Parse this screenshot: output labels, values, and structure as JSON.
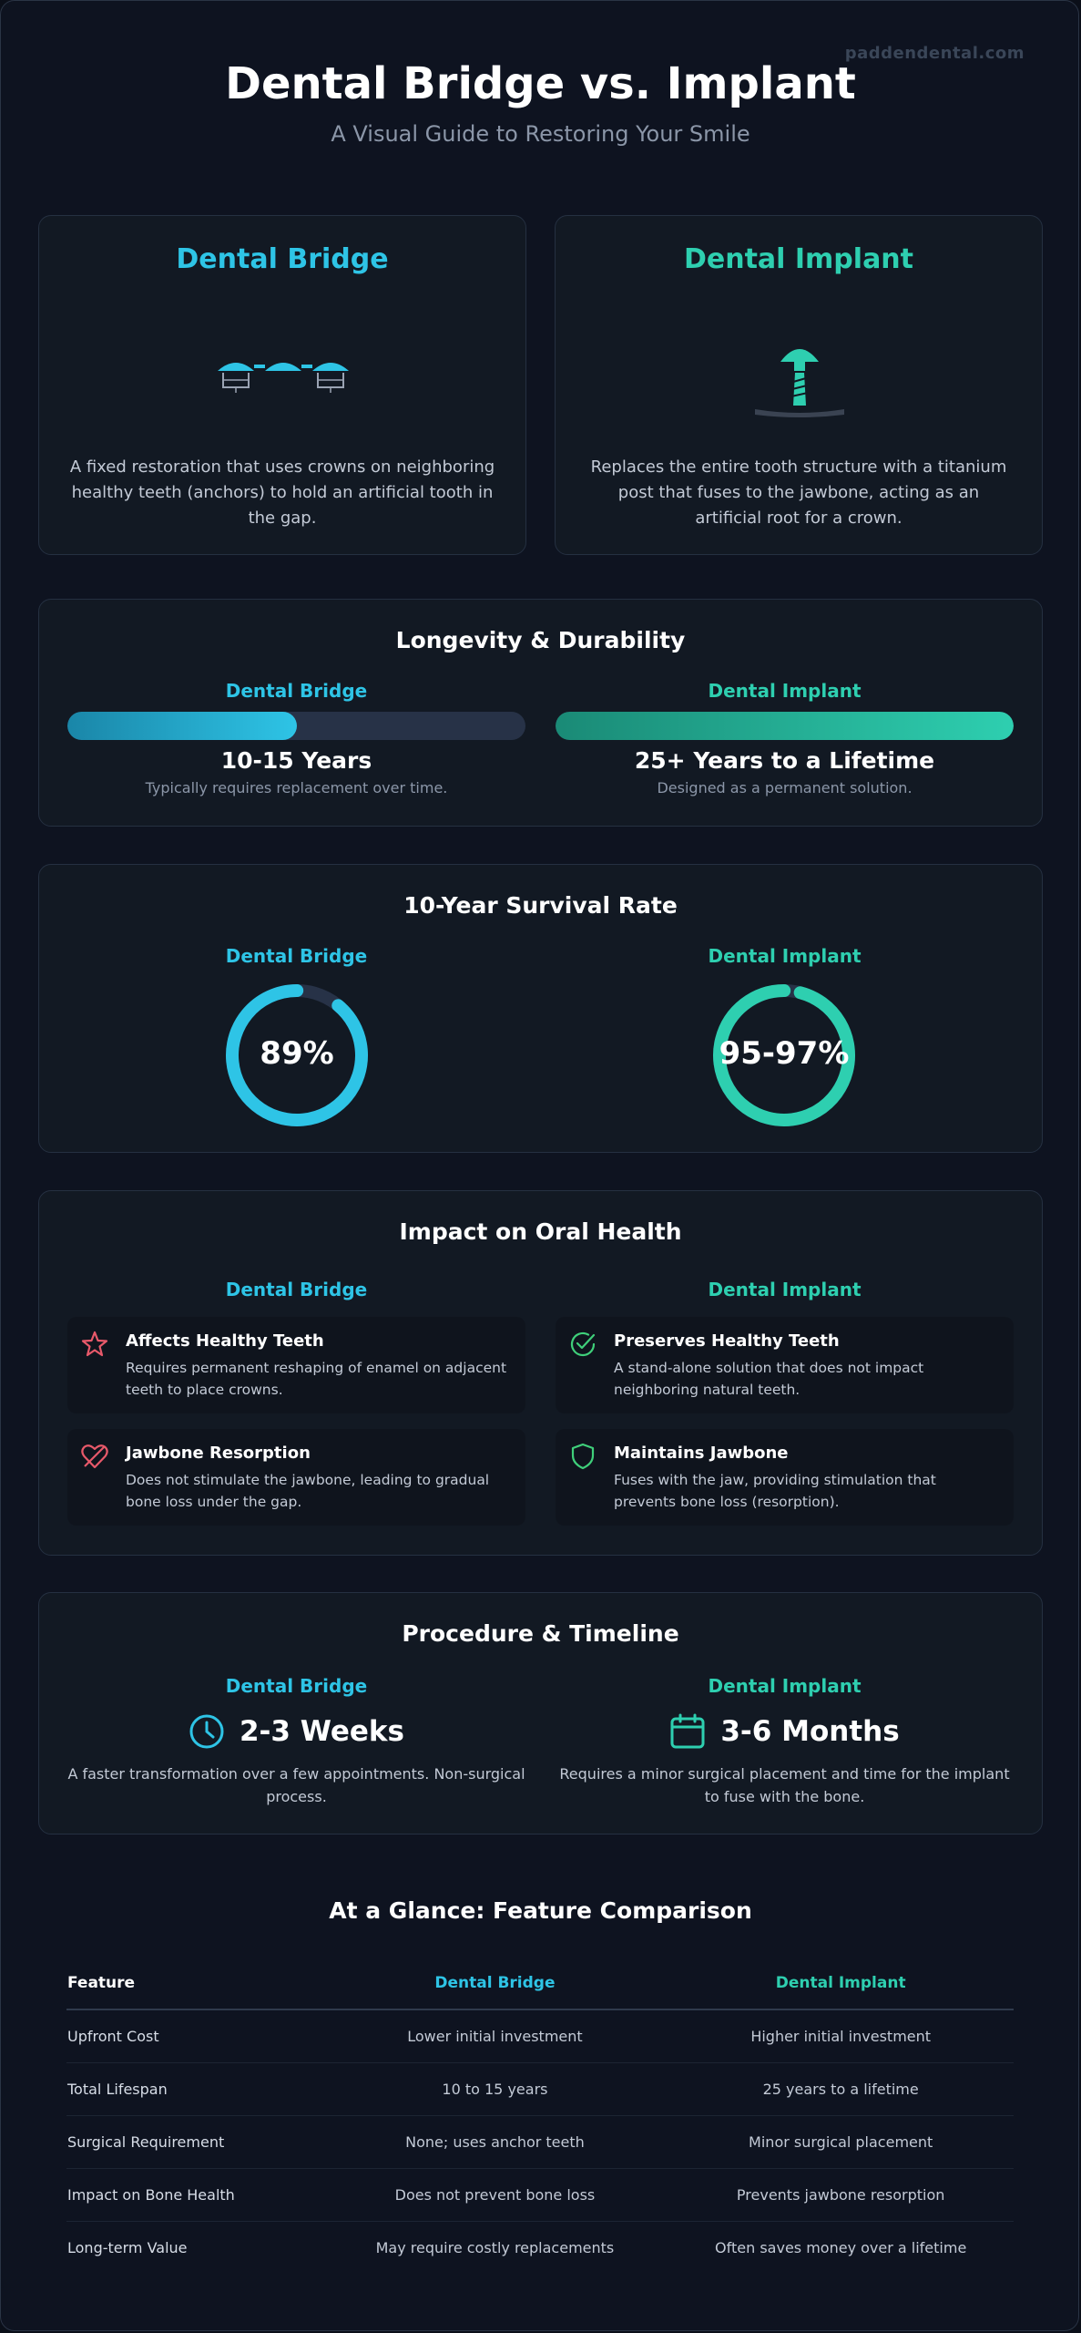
{
  "watermark": "paddendental.com",
  "title": "Dental Bridge vs. Implant",
  "subtitle": "A Visual Guide to Restoring Your Smile",
  "colors": {
    "bridge": "#2ec4e6",
    "implant": "#2ecfb0",
    "negative": "#e8596a",
    "positive": "#3fcf7a",
    "track": "#273247"
  },
  "intro": {
    "bridge": {
      "title": "Dental Bridge",
      "icon": "dental-bridge-icon",
      "text": "A fixed restoration that uses crowns on neighboring healthy teeth (anchors) to hold an artificial tooth in the gap."
    },
    "implant": {
      "title": "Dental Implant",
      "icon": "dental-implant-icon",
      "text": "Replaces the entire tooth structure with a titanium post that fuses to the jawbone, acting as an artificial root for a crown."
    }
  },
  "longevity": {
    "title": "Longevity & Durability",
    "bridge": {
      "label": "Dental Bridge",
      "value": "10-15 Years",
      "note": "Typically requires replacement over time.",
      "fill_fraction": 0.5
    },
    "implant": {
      "label": "Dental Implant",
      "value": "25+ Years to a Lifetime",
      "note": "Designed as a permanent solution.",
      "fill_fraction": 1.0
    }
  },
  "survival": {
    "title": "10-Year Survival Rate",
    "bridge": {
      "label": "Dental Bridge",
      "value": "89%",
      "percent": 89
    },
    "implant": {
      "label": "Dental Implant",
      "value": "95-97%",
      "percent": 96
    }
  },
  "impact": {
    "title": "Impact on Oral Health",
    "bridge": {
      "label": "Dental Bridge",
      "items": [
        {
          "icon": "star-outline-icon",
          "title": "Affects Healthy Teeth",
          "text": "Requires permanent reshaping of enamel on adjacent teeth to place crowns."
        },
        {
          "icon": "broken-heart-icon",
          "title": "Jawbone Resorption",
          "text": "Does not stimulate the jawbone, leading to gradual bone loss under the gap."
        }
      ]
    },
    "implant": {
      "label": "Dental Implant",
      "items": [
        {
          "icon": "check-circle-icon",
          "title": "Preserves Healthy Teeth",
          "text": "A stand-alone solution that does not impact neighboring natural teeth."
        },
        {
          "icon": "shield-icon",
          "title": "Maintains Jawbone",
          "text": "Fuses with the jaw, providing stimulation that prevents bone loss (resorption)."
        }
      ]
    }
  },
  "procedure": {
    "title": "Procedure & Timeline",
    "bridge": {
      "label": "Dental Bridge",
      "icon": "clock-icon",
      "value": "2-3 Weeks",
      "text": "A faster transformation over a few appointments. Non-surgical process."
    },
    "implant": {
      "label": "Dental Implant",
      "icon": "calendar-icon",
      "value": "3-6 Months",
      "text": "Requires a minor surgical placement and time for the implant to fuse with the bone."
    }
  },
  "comparison": {
    "title": "At a Glance: Feature Comparison",
    "headers": [
      "Feature",
      "Dental Bridge",
      "Dental Implant"
    ],
    "rows": [
      [
        "Upfront Cost",
        "Lower initial investment",
        "Higher initial investment"
      ],
      [
        "Total Lifespan",
        "10 to 15 years",
        "25 years to a lifetime"
      ],
      [
        "Surgical Requirement",
        "None; uses anchor teeth",
        "Minor surgical placement"
      ],
      [
        "Impact on Bone Health",
        "Does not prevent bone loss",
        "Prevents jawbone resorption"
      ],
      [
        "Long-term Value",
        "May require costly replacements",
        "Often saves money over a lifetime"
      ]
    ]
  }
}
